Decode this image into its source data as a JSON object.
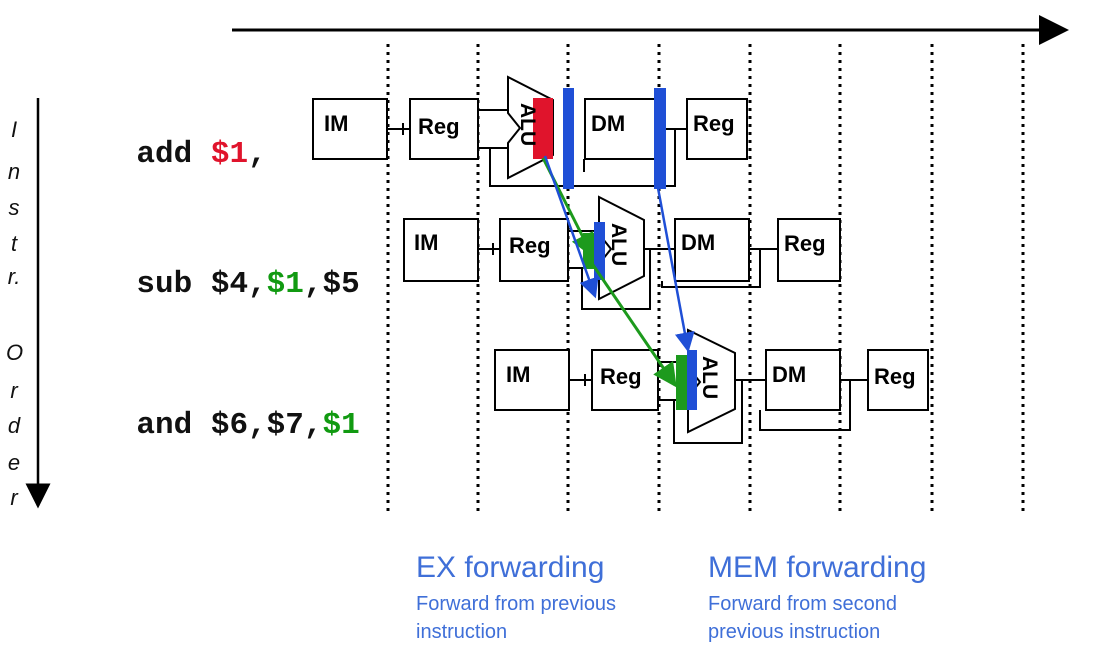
{
  "axis": {
    "vertical_letters": [
      "I",
      "n",
      "s",
      "t",
      "r.",
      "O",
      "r",
      "d",
      "e",
      "r"
    ]
  },
  "instructions": [
    {
      "op": "add ",
      "operands": [
        {
          "text": "$1",
          "color": "red"
        },
        {
          "text": ",",
          "color": "black"
        }
      ]
    },
    {
      "op": "sub ",
      "operands": [
        {
          "text": "$4,",
          "color": "black"
        },
        {
          "text": "$1",
          "color": "green"
        },
        {
          "text": ",$5",
          "color": "black"
        }
      ]
    },
    {
      "op": "and ",
      "operands": [
        {
          "text": "$6,$7,",
          "color": "black"
        },
        {
          "text": "$1",
          "color": "green"
        }
      ]
    }
  ],
  "pipeline": {
    "stage_labels": {
      "im": "IM",
      "reg": "Reg",
      "alu": "ALU",
      "dm": "DM"
    }
  },
  "captions": {
    "ex": {
      "title": "EX forwarding",
      "body": "Forward from previous instruction"
    },
    "mem": {
      "title": "MEM forwarding",
      "body": "Forward from second previous instruction"
    }
  },
  "colors": {
    "ex_forward": "#1d9a1d",
    "mem_forward": "#1f4fd6",
    "red_latch": "#e0142c",
    "caption": "#3f6fd8"
  }
}
